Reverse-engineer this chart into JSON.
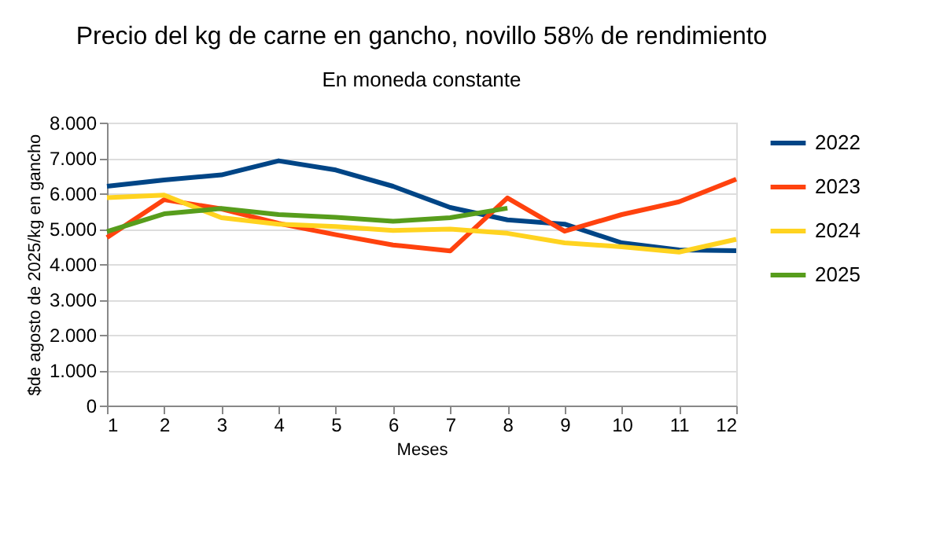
{
  "chart_data": {
    "type": "line",
    "title": "Precio del kg de carne en gancho, novillo 58% de rendimiento",
    "subtitle": "En moneda constante",
    "xlabel": "Meses",
    "ylabel": "$de agosto de 2025/kg en gancho",
    "x": [
      1,
      2,
      3,
      4,
      5,
      6,
      7,
      8,
      9,
      10,
      11,
      12
    ],
    "series": [
      {
        "name": "2022",
        "color": "#004586",
        "values": [
          6200,
          6380,
          6520,
          6920,
          6660,
          6200,
          5600,
          5250,
          5130,
          4600,
          4400,
          4380
        ]
      },
      {
        "name": "2023",
        "color": "#ff420e",
        "values": [
          4750,
          5820,
          5560,
          5150,
          4830,
          4540,
          4370,
          5870,
          4930,
          5400,
          5760,
          6400
        ]
      },
      {
        "name": "2024",
        "color": "#ffd320",
        "values": [
          5880,
          5950,
          5310,
          5130,
          5060,
          4950,
          4990,
          4870,
          4600,
          4490,
          4340,
          4700
        ]
      },
      {
        "name": "2025",
        "color": "#579d1c",
        "values": [
          4920,
          5420,
          5570,
          5400,
          5320,
          5210,
          5310,
          5580,
          null,
          null,
          null,
          null
        ]
      }
    ],
    "xlim": [
      1,
      12
    ],
    "xticks": [
      1,
      2,
      3,
      4,
      5,
      6,
      7,
      8,
      9,
      10,
      11,
      12
    ],
    "ylim": [
      0,
      8000
    ],
    "yticks": [
      {
        "value": 0,
        "label": "0"
      },
      {
        "value": 1000,
        "label": "1.000"
      },
      {
        "value": 2000,
        "label": "2.000"
      },
      {
        "value": 3000,
        "label": "3.000"
      },
      {
        "value": 4000,
        "label": "4.000"
      },
      {
        "value": 5000,
        "label": "5.000"
      },
      {
        "value": 6000,
        "label": "6.000"
      },
      {
        "value": 7000,
        "label": "7.000"
      },
      {
        "value": 8000,
        "label": "8.000"
      }
    ],
    "grid": "y",
    "legend": "right",
    "marker": "none",
    "line_style": "solid"
  }
}
